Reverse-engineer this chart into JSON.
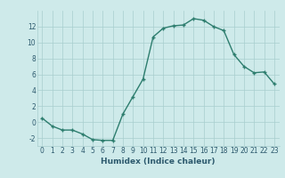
{
  "x": [
    0,
    1,
    2,
    3,
    4,
    5,
    6,
    7,
    8,
    9,
    10,
    11,
    12,
    13,
    14,
    15,
    16,
    17,
    18,
    19,
    20,
    21,
    22,
    23
  ],
  "y": [
    0.5,
    -0.5,
    -1.0,
    -1.0,
    -1.5,
    -2.2,
    -2.3,
    -2.3,
    1.0,
    3.2,
    5.4,
    10.7,
    11.8,
    12.1,
    12.2,
    13.0,
    12.8,
    12.0,
    11.5,
    8.5,
    7.0,
    6.2,
    6.3,
    4.8
  ],
  "line_color": "#2d7d6e",
  "marker_color": "#2d7d6e",
  "bg_color": "#ceeaea",
  "grid_color": "#a8cece",
  "xlabel": "Humidex (Indice chaleur)",
  "xlim": [
    -0.5,
    23.5
  ],
  "ylim": [
    -3,
    14
  ],
  "yticks": [
    -2,
    0,
    2,
    4,
    6,
    8,
    10,
    12
  ],
  "xticks": [
    0,
    1,
    2,
    3,
    4,
    5,
    6,
    7,
    8,
    9,
    10,
    11,
    12,
    13,
    14,
    15,
    16,
    17,
    18,
    19,
    20,
    21,
    22,
    23
  ],
  "xtick_labels": [
    "0",
    "1",
    "2",
    "3",
    "4",
    "5",
    "6",
    "7",
    "8",
    "9",
    "10",
    "11",
    "12",
    "13",
    "14",
    "15",
    "16",
    "17",
    "18",
    "19",
    "20",
    "21",
    "22",
    "23"
  ],
  "font_color": "#2d5a6e",
  "label_fontsize": 6.5,
  "tick_fontsize": 5.5
}
